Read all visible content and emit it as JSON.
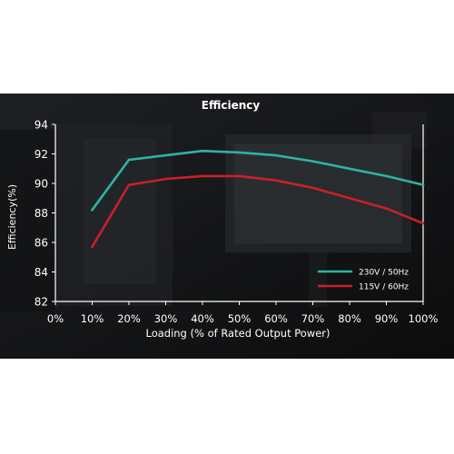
{
  "chart_data": {
    "type": "line",
    "title": "Efficiency",
    "xlabel": "Loading (% of Rated Output Power)",
    "ylabel": "Efficiency(%)",
    "x_ticks": [
      "0%",
      "10%",
      "20%",
      "30%",
      "40%",
      "50%",
      "60%",
      "70%",
      "80%",
      "90%",
      "100%"
    ],
    "y_ticks": [
      "82",
      "84",
      "86",
      "88",
      "90",
      "92",
      "94"
    ],
    "xlim": [
      0,
      100
    ],
    "ylim": [
      82,
      94
    ],
    "grid": false,
    "legend_position": "bottom-right",
    "series": [
      {
        "name": "230V / 50Hz",
        "color": "#2fb3a4",
        "x": [
          10,
          20,
          30,
          40,
          50,
          60,
          70,
          80,
          90,
          100
        ],
        "y": [
          88.2,
          91.6,
          91.9,
          92.2,
          92.1,
          91.9,
          91.5,
          91.0,
          90.5,
          89.9
        ]
      },
      {
        "name": "115V / 60Hz",
        "color": "#c8202a",
        "x": [
          10,
          20,
          30,
          40,
          50,
          60,
          70,
          80,
          90,
          100
        ],
        "y": [
          85.7,
          89.9,
          90.3,
          90.5,
          90.5,
          90.2,
          89.7,
          89.0,
          88.3,
          87.3
        ]
      }
    ]
  }
}
